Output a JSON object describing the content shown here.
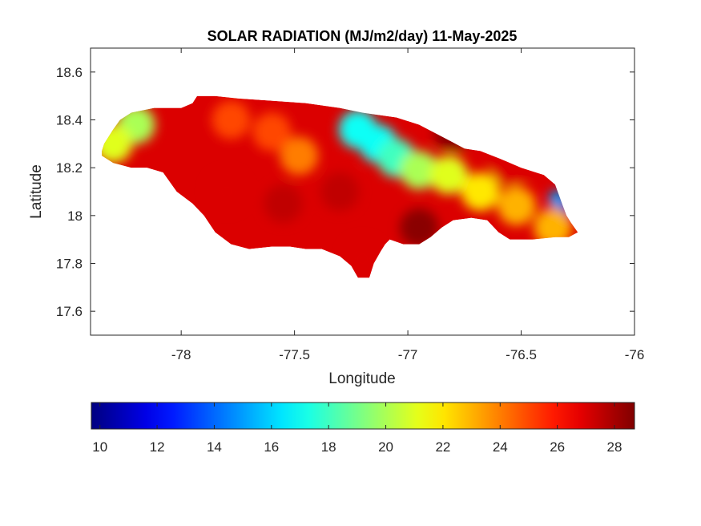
{
  "chart_data": {
    "type": "heatmap",
    "title": "SOLAR RADIATION (MJ/m2/day) 11-May-2025",
    "xlabel": "Longitude",
    "ylabel": "Latitude",
    "xlim": [
      -78.4,
      -76
    ],
    "ylim": [
      17.5,
      18.7
    ],
    "xticks": [
      -78,
      -77.5,
      -77,
      -76.5,
      -76
    ],
    "xtick_labels": [
      "-78",
      "-77.5",
      "-77",
      "-76.5",
      "-76"
    ],
    "yticks": [
      17.6,
      17.8,
      18,
      18.2,
      18.4,
      18.6
    ],
    "ytick_labels": [
      "17.6",
      "17.8",
      "18",
      "18.2",
      "18.4",
      "18.6"
    ],
    "grid": false,
    "colormap": "jet",
    "colorbar": {
      "orientation": "horizontal",
      "location": "below",
      "range": [
        9.7,
        28.7
      ],
      "ticks": [
        10,
        12,
        14,
        16,
        18,
        20,
        22,
        24,
        26,
        28
      ],
      "tick_labels": [
        "10",
        "12",
        "14",
        "16",
        "18",
        "20",
        "22",
        "24",
        "26",
        "28"
      ]
    },
    "region_outline": [
      [
        -78.35,
        18.27
      ],
      [
        -78.34,
        18.3
      ],
      [
        -78.3,
        18.36
      ],
      [
        -78.27,
        18.4
      ],
      [
        -78.22,
        18.43
      ],
      [
        -78.12,
        18.45
      ],
      [
        -78.0,
        18.45
      ],
      [
        -77.95,
        18.47
      ],
      [
        -77.93,
        18.5
      ],
      [
        -77.85,
        18.5
      ],
      [
        -77.75,
        18.49
      ],
      [
        -77.6,
        18.48
      ],
      [
        -77.45,
        18.47
      ],
      [
        -77.3,
        18.45
      ],
      [
        -77.2,
        18.43
      ],
      [
        -77.05,
        18.41
      ],
      [
        -76.95,
        18.38
      ],
      [
        -76.85,
        18.33
      ],
      [
        -76.75,
        18.28
      ],
      [
        -76.68,
        18.27
      ],
      [
        -76.6,
        18.24
      ],
      [
        -76.5,
        18.2
      ],
      [
        -76.4,
        18.17
      ],
      [
        -76.35,
        18.13
      ],
      [
        -76.32,
        18.05
      ],
      [
        -76.3,
        18.0
      ],
      [
        -76.28,
        17.97
      ],
      [
        -76.25,
        17.93
      ],
      [
        -76.29,
        17.91
      ],
      [
        -76.35,
        17.91
      ],
      [
        -76.45,
        17.9
      ],
      [
        -76.55,
        17.9
      ],
      [
        -76.6,
        17.93
      ],
      [
        -76.65,
        17.98
      ],
      [
        -76.72,
        17.99
      ],
      [
        -76.8,
        17.98
      ],
      [
        -76.85,
        17.95
      ],
      [
        -76.9,
        17.91
      ],
      [
        -76.95,
        17.88
      ],
      [
        -77.02,
        17.88
      ],
      [
        -77.08,
        17.9
      ],
      [
        -77.1,
        17.88
      ],
      [
        -77.12,
        17.85
      ],
      [
        -77.15,
        17.8
      ],
      [
        -77.17,
        17.74
      ],
      [
        -77.22,
        17.74
      ],
      [
        -77.25,
        17.79
      ],
      [
        -77.3,
        17.83
      ],
      [
        -77.38,
        17.86
      ],
      [
        -77.45,
        17.86
      ],
      [
        -77.52,
        17.87
      ],
      [
        -77.6,
        17.87
      ],
      [
        -77.7,
        17.86
      ],
      [
        -77.78,
        17.88
      ],
      [
        -77.85,
        17.93
      ],
      [
        -77.9,
        18.0
      ],
      [
        -77.95,
        18.05
      ],
      [
        -78.02,
        18.1
      ],
      [
        -78.08,
        18.18
      ],
      [
        -78.15,
        18.2
      ],
      [
        -78.22,
        18.2
      ],
      [
        -78.3,
        18.22
      ],
      [
        -78.35,
        18.25
      ]
    ],
    "features": [
      {
        "lon": -76.31,
        "lat": 18.02,
        "value": 11
      },
      {
        "lon": -76.34,
        "lat": 18.07,
        "value": 15
      },
      {
        "lon": -77.22,
        "lat": 18.36,
        "value": 17
      },
      {
        "lon": -77.13,
        "lat": 18.3,
        "value": 17
      },
      {
        "lon": -77.05,
        "lat": 18.24,
        "value": 18
      },
      {
        "lon": -76.95,
        "lat": 18.19,
        "value": 20
      },
      {
        "lon": -76.82,
        "lat": 18.17,
        "value": 21
      },
      {
        "lon": -76.68,
        "lat": 18.1,
        "value": 22
      },
      {
        "lon": -76.52,
        "lat": 18.04,
        "value": 23
      },
      {
        "lon": -76.36,
        "lat": 17.95,
        "value": 23
      },
      {
        "lon": -78.2,
        "lat": 18.38,
        "value": 20
      },
      {
        "lon": -78.3,
        "lat": 18.3,
        "value": 21
      },
      {
        "lon": -77.48,
        "lat": 18.25,
        "value": 24
      },
      {
        "lon": -77.6,
        "lat": 18.35,
        "value": 25
      },
      {
        "lon": -77.78,
        "lat": 18.4,
        "value": 25
      },
      {
        "lon": -77.55,
        "lat": 18.05,
        "value": 27.5
      },
      {
        "lon": -77.3,
        "lat": 18.1,
        "value": 27.5
      },
      {
        "lon": -76.95,
        "lat": 17.95,
        "value": 28.5
      },
      {
        "lon": -76.8,
        "lat": 18.35,
        "value": 28.5
      },
      {
        "lon": -76.55,
        "lat": 18.2,
        "value": 27
      },
      {
        "lon": -77.8,
        "lat": 18.1,
        "value": 27
      },
      {
        "lon": -77.2,
        "lat": 17.82,
        "value": 27
      }
    ]
  }
}
